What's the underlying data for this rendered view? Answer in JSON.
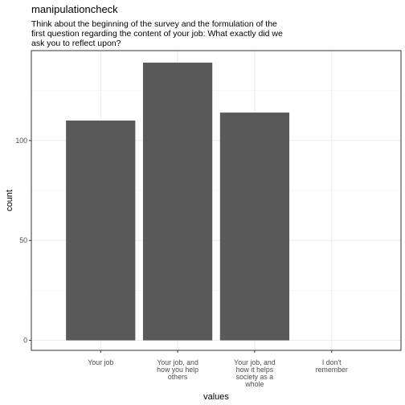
{
  "chart_data": {
    "type": "bar",
    "title": "manipulationcheck",
    "subtitle_lines": [
      "Think about the beginning of the survey and the formulation of the",
      "first question regarding the content of your job: What exactly did we",
      "ask you to reflect upon?"
    ],
    "xlabel": "values",
    "ylabel": "count",
    "categories": [
      [
        "Your job"
      ],
      [
        "Your job, and",
        "how you help",
        "others"
      ],
      [
        "Your job, and",
        "how it helps",
        "society as a",
        "whole"
      ],
      [
        "I don't",
        "remember"
      ]
    ],
    "values": [
      110,
      139,
      114,
      0
    ],
    "ylim": [
      -5,
      145
    ],
    "yticks": [
      0,
      50,
      100
    ],
    "grid": true,
    "colors": {
      "bar": "#595959",
      "grid_major": "#ebebeb",
      "grid_minor": "#f5f5f5",
      "panel_border": "#333333"
    }
  }
}
